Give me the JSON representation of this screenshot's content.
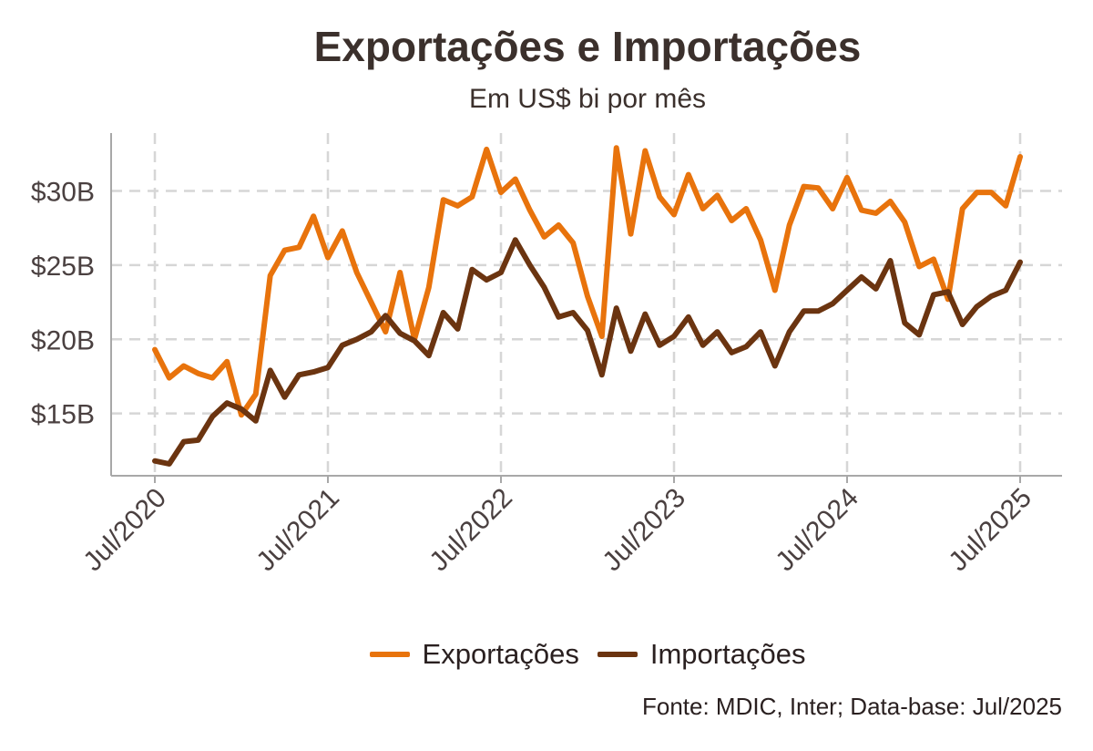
{
  "chart_data": {
    "type": "line",
    "title": "Exportações e Importações",
    "subtitle": "Em US$ bi por mês",
    "y_unit": "US$ bi",
    "ylim": [
      10.8,
      33.9
    ],
    "y_ticks": [
      15,
      20,
      25,
      30
    ],
    "y_tick_labels": [
      "$15B",
      "$20B",
      "$25B",
      "$30B"
    ],
    "x_tick_labels": [
      "Jul/2020",
      "Jul/2021",
      "Jul/2022",
      "Jul/2023",
      "Jul/2024",
      "Jul/2025"
    ],
    "x_tick_months": [
      "2020-07",
      "2021-07",
      "2022-07",
      "2023-07",
      "2024-07",
      "2025-07"
    ],
    "x": [
      "2020-07",
      "2020-08",
      "2020-09",
      "2020-10",
      "2020-11",
      "2020-12",
      "2021-01",
      "2021-02",
      "2021-03",
      "2021-04",
      "2021-05",
      "2021-06",
      "2021-07",
      "2021-08",
      "2021-09",
      "2021-10",
      "2021-11",
      "2021-12",
      "2022-01",
      "2022-02",
      "2022-03",
      "2022-04",
      "2022-05",
      "2022-06",
      "2022-07",
      "2022-08",
      "2022-09",
      "2022-10",
      "2022-11",
      "2022-12",
      "2023-01",
      "2023-02",
      "2023-03",
      "2023-04",
      "2023-05",
      "2023-06",
      "2023-07",
      "2023-08",
      "2023-09",
      "2023-10",
      "2023-11",
      "2023-12",
      "2024-01",
      "2024-02",
      "2024-03",
      "2024-04",
      "2024-05",
      "2024-06",
      "2024-07",
      "2024-08",
      "2024-09",
      "2024-10",
      "2024-11",
      "2024-12",
      "2025-01",
      "2025-02",
      "2025-03",
      "2025-04",
      "2025-05",
      "2025-06",
      "2025-07"
    ],
    "series": [
      {
        "name": "Exportações",
        "color": "#e8730c",
        "values": [
          19.3,
          17.4,
          18.2,
          17.7,
          17.4,
          18.5,
          14.9,
          16.3,
          24.3,
          26.0,
          26.2,
          28.3,
          25.5,
          27.3,
          24.5,
          22.5,
          20.5,
          24.5,
          20.0,
          23.5,
          29.4,
          29.0,
          29.6,
          32.8,
          29.9,
          30.8,
          28.7,
          26.9,
          27.7,
          26.5,
          22.9,
          20.2,
          32.9,
          27.1,
          32.7,
          29.6,
          28.4,
          31.1,
          28.8,
          29.7,
          28.0,
          28.8,
          26.7,
          23.3,
          27.7,
          30.3,
          30.2,
          28.8,
          30.9,
          28.7,
          28.5,
          29.3,
          27.9,
          24.9,
          25.4,
          22.7,
          28.8,
          29.9,
          29.9,
          29.0,
          32.3
        ]
      },
      {
        "name": "Importações",
        "color": "#6b3410",
        "values": [
          11.8,
          11.6,
          13.1,
          13.2,
          14.8,
          15.7,
          15.3,
          14.5,
          17.9,
          16.1,
          17.6,
          17.8,
          18.1,
          19.6,
          20.0,
          20.5,
          21.6,
          20.4,
          19.9,
          18.9,
          21.8,
          20.7,
          24.7,
          24.0,
          24.5,
          26.7,
          25.0,
          23.5,
          21.5,
          21.8,
          20.6,
          17.6,
          22.1,
          19.2,
          21.7,
          19.6,
          20.2,
          21.5,
          19.6,
          20.5,
          19.1,
          19.5,
          20.5,
          18.2,
          20.5,
          21.9,
          21.9,
          22.4,
          23.3,
          24.2,
          23.4,
          25.3,
          21.1,
          20.3,
          23.0,
          23.2,
          21.0,
          22.2,
          22.9,
          23.3,
          25.2
        ]
      }
    ],
    "grid": true,
    "legend_position": "bottom"
  },
  "source_text": "Fonte: MDIC, Inter; Data-base: Jul/2025"
}
